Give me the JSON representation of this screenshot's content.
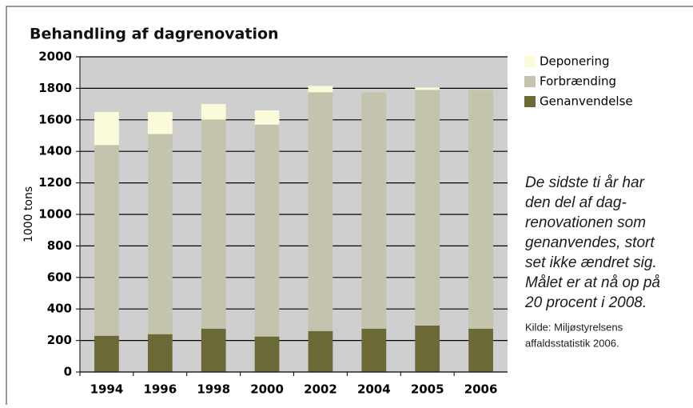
{
  "chart_data": {
    "type": "stacked_bar",
    "title": "Behandling af dagrenovation",
    "y_label": "1000 tons",
    "categories": [
      "1994",
      "1996",
      "1998",
      "2000",
      "2002",
      "2004",
      "2005",
      "2006"
    ],
    "series": [
      {
        "name": "Genanvendelse",
        "color": "#6b6a37",
        "values": [
          230,
          240,
          275,
          225,
          260,
          275,
          295,
          275
        ]
      },
      {
        "name": "Forbrænding",
        "color": "#c4c3ad",
        "values": [
          1210,
          1270,
          1325,
          1345,
          1515,
          1500,
          1495,
          1515
        ]
      },
      {
        "name": "Deponering",
        "color": "#fcfbd9",
        "values": [
          210,
          140,
          100,
          90,
          40,
          0,
          15,
          0
        ]
      }
    ],
    "ylim": [
      0,
      2000
    ],
    "yticks": [
      0,
      200,
      400,
      600,
      800,
      1000,
      1200,
      1400,
      1600,
      1800,
      2000
    ],
    "grid": true,
    "annotation": [
      "De sidste ti år har",
      "den del af dag-",
      "renovationen som",
      "genanvendes, stort",
      "set ikke ændret sig.",
      "Målet er at nå op på",
      "20 procent i 2008."
    ],
    "source": [
      "Kilde: Miljøstyrelsens",
      "affaldsstatistik 2006."
    ]
  }
}
